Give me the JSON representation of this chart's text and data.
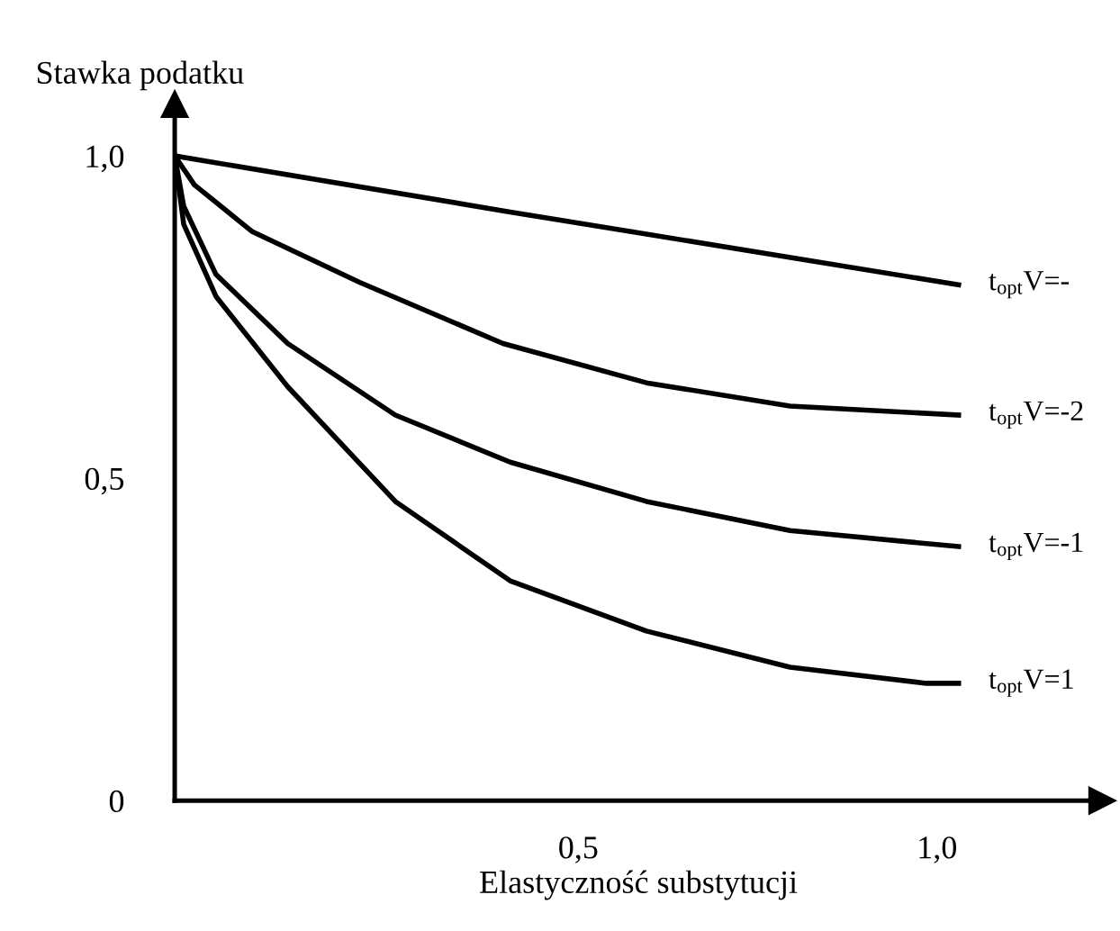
{
  "chart_data": {
    "type": "line",
    "xlabel": "Elastyczność substytucji",
    "ylabel": "Stawka podatku",
    "xlim": [
      -0.0625,
      1.23
    ],
    "ylim": [
      0,
      1.08
    ],
    "xticks": [
      {
        "value": 0.5,
        "label": "0,5"
      },
      {
        "value": 1.0,
        "label": "1,0"
      }
    ],
    "yticks": [
      {
        "value": 0,
        "label": "0"
      },
      {
        "value": 0.5,
        "label": "0,5"
      },
      {
        "value": 1.0,
        "label": "1,0"
      }
    ],
    "grid": false,
    "legend": false,
    "marker": "none",
    "line_style": "solid",
    "series": [
      {
        "name": "t$_{opt}$V=-",
        "color": "#000000",
        "x": [
          -0.0625,
          0.405,
          1.03
        ],
        "values": [
          1.0,
          0.913,
          0.8
        ]
      },
      {
        "name": "t$_{opt}$V=-2",
        "color": "#000000",
        "x": [
          -0.0625,
          -0.035,
          0.045,
          0.195,
          0.395,
          0.595,
          0.795,
          1.03
        ],
        "values": [
          1.0,
          0.955,
          0.883,
          0.804,
          0.709,
          0.648,
          0.612,
          0.598
        ]
      },
      {
        "name": "t$_{opt}$V=-1",
        "color": "#000000",
        "x": [
          -0.0625,
          -0.05,
          -0.005,
          0.095,
          0.245,
          0.405,
          0.595,
          0.795,
          1.03
        ],
        "values": [
          1.0,
          0.922,
          0.816,
          0.709,
          0.598,
          0.525,
          0.464,
          0.419,
          0.394
        ]
      },
      {
        "name": "t$_{opt}$V=1",
        "color": "#000000",
        "x": [
          -0.0625,
          -0.05,
          -0.005,
          0.095,
          0.245,
          0.405,
          0.595,
          0.795,
          0.985,
          1.03
        ],
        "values": [
          1.0,
          0.894,
          0.782,
          0.642,
          0.464,
          0.341,
          0.263,
          0.207,
          0.182,
          0.182
        ]
      }
    ]
  }
}
